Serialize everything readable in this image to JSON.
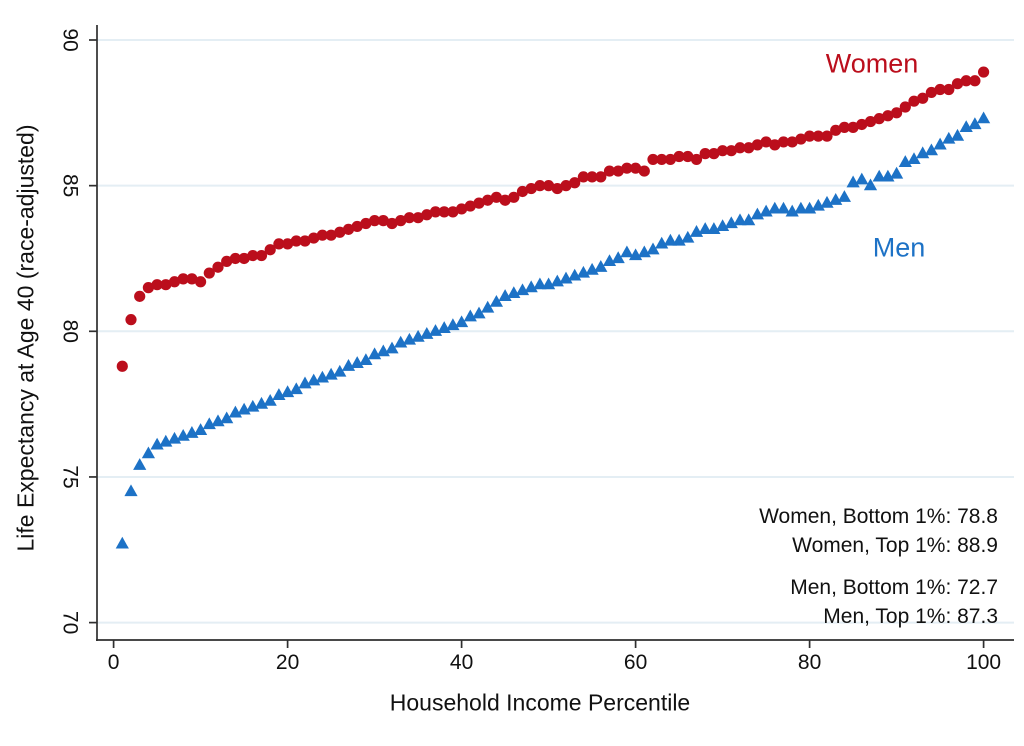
{
  "figure": {
    "ylabel": "Life Expectancy at Age 40 (race-adjusted)",
    "xlabel": "Household Income Percentile",
    "series_labels": {
      "women": "Women",
      "men": "Men"
    },
    "annotations": {
      "women_bottom": "Women, Bottom 1%: 78.8",
      "women_top": "Women, Top 1%: 88.9",
      "men_bottom": "Men, Bottom 1%: 72.7",
      "men_top": "Men, Top 1%: 87.3"
    },
    "colors": {
      "gridline": "#e4eef4",
      "axis": "#2f2f2f",
      "text": "#111111"
    }
  },
  "chart_data": {
    "type": "scatter",
    "title": "",
    "xlabel": "Household Income Percentile",
    "ylabel": "Life Expectancy at Age 40 (race-adjusted)",
    "x_ticks": [
      0,
      20,
      40,
      60,
      80,
      100
    ],
    "y_ticks": [
      70,
      75,
      80,
      85,
      90
    ],
    "xlim": [
      0,
      103
    ],
    "ylim": [
      69.3,
      90.6
    ],
    "grid": "horizontal-only",
    "legend_position": "inline-text-labels",
    "x": [
      1,
      2,
      3,
      4,
      5,
      6,
      7,
      8,
      9,
      10,
      11,
      12,
      13,
      14,
      15,
      16,
      17,
      18,
      19,
      20,
      21,
      22,
      23,
      24,
      25,
      26,
      27,
      28,
      29,
      30,
      31,
      32,
      33,
      34,
      35,
      36,
      37,
      38,
      39,
      40,
      41,
      42,
      43,
      44,
      45,
      46,
      47,
      48,
      49,
      50,
      51,
      52,
      53,
      54,
      55,
      56,
      57,
      58,
      59,
      60,
      61,
      62,
      63,
      64,
      65,
      66,
      67,
      68,
      69,
      70,
      71,
      72,
      73,
      74,
      75,
      76,
      77,
      78,
      79,
      80,
      81,
      82,
      83,
      84,
      85,
      86,
      87,
      88,
      89,
      90,
      91,
      92,
      93,
      94,
      95,
      96,
      97,
      98,
      99,
      100
    ],
    "series": [
      {
        "name": "Women",
        "marker": "circle",
        "color": "#bb0e1c",
        "values": [
          78.8,
          80.4,
          81.2,
          81.5,
          81.6,
          81.6,
          81.7,
          81.8,
          81.8,
          81.7,
          82.0,
          82.2,
          82.4,
          82.5,
          82.5,
          82.6,
          82.6,
          82.8,
          83.0,
          83.0,
          83.1,
          83.1,
          83.2,
          83.3,
          83.3,
          83.4,
          83.5,
          83.6,
          83.7,
          83.8,
          83.8,
          83.7,
          83.8,
          83.9,
          83.9,
          84.0,
          84.1,
          84.1,
          84.1,
          84.2,
          84.3,
          84.4,
          84.5,
          84.6,
          84.5,
          84.6,
          84.8,
          84.9,
          85.0,
          85.0,
          84.9,
          85.0,
          85.1,
          85.3,
          85.3,
          85.3,
          85.5,
          85.5,
          85.6,
          85.6,
          85.5,
          85.9,
          85.9,
          85.9,
          86.0,
          86.0,
          85.9,
          86.1,
          86.1,
          86.2,
          86.2,
          86.3,
          86.3,
          86.4,
          86.5,
          86.4,
          86.5,
          86.5,
          86.6,
          86.7,
          86.7,
          86.7,
          86.9,
          87.0,
          87.0,
          87.1,
          87.2,
          87.3,
          87.4,
          87.5,
          87.7,
          87.9,
          88.0,
          88.2,
          88.3,
          88.3,
          88.5,
          88.6,
          88.6,
          88.9
        ]
      },
      {
        "name": "Men",
        "marker": "triangle",
        "color": "#1d72c6",
        "values": [
          72.7,
          74.5,
          75.4,
          75.8,
          76.1,
          76.2,
          76.3,
          76.4,
          76.5,
          76.6,
          76.8,
          76.9,
          77.0,
          77.2,
          77.3,
          77.4,
          77.5,
          77.6,
          77.8,
          77.9,
          78.0,
          78.2,
          78.3,
          78.4,
          78.5,
          78.6,
          78.8,
          78.9,
          79.0,
          79.2,
          79.3,
          79.4,
          79.6,
          79.7,
          79.8,
          79.9,
          80.0,
          80.1,
          80.2,
          80.3,
          80.5,
          80.6,
          80.8,
          81.0,
          81.2,
          81.3,
          81.4,
          81.5,
          81.6,
          81.6,
          81.7,
          81.8,
          81.9,
          82.0,
          82.1,
          82.2,
          82.4,
          82.5,
          82.7,
          82.6,
          82.7,
          82.8,
          83.0,
          83.1,
          83.1,
          83.2,
          83.4,
          83.5,
          83.5,
          83.6,
          83.7,
          83.8,
          83.8,
          84.0,
          84.1,
          84.2,
          84.2,
          84.1,
          84.2,
          84.2,
          84.3,
          84.4,
          84.5,
          84.6,
          85.1,
          85.2,
          85.0,
          85.3,
          85.3,
          85.4,
          85.8,
          85.9,
          86.1,
          86.2,
          86.4,
          86.6,
          86.7,
          87.0,
          87.1,
          87.3
        ]
      }
    ],
    "annotations_text": [
      "Women, Bottom 1%: 78.8",
      "Women, Top 1%: 88.9",
      "Men, Bottom 1%: 72.7",
      "Men, Top 1%: 87.3"
    ]
  }
}
